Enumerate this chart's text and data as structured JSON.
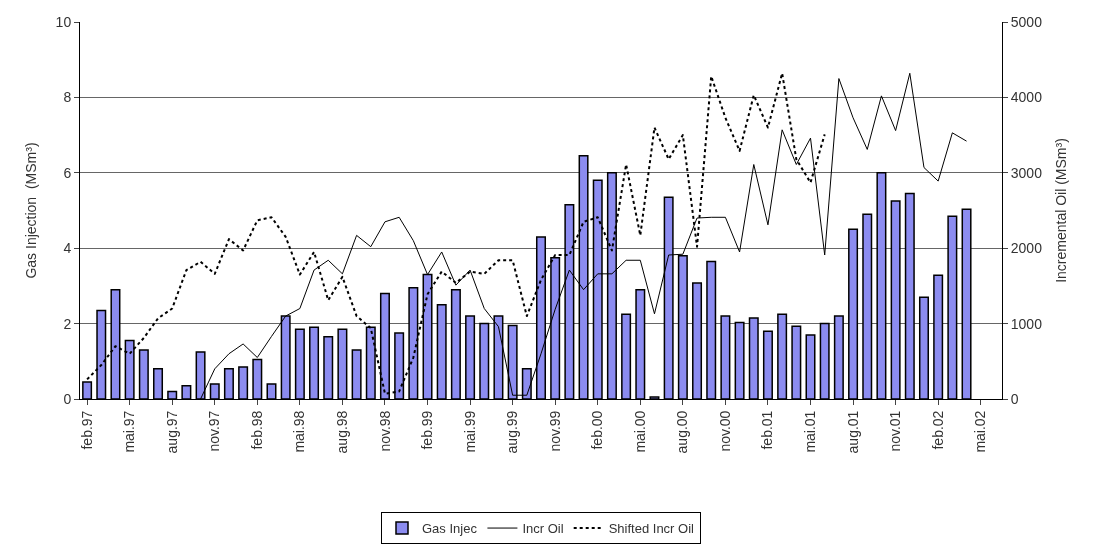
{
  "chart_data": {
    "type": "bar",
    "categories": [
      "feb.97",
      null,
      null,
      "mai.97",
      null,
      null,
      "aug.97",
      null,
      null,
      "nov.97",
      null,
      null,
      "feb.98",
      null,
      null,
      "mai.98",
      null,
      null,
      "aug.98",
      null,
      null,
      "nov.98",
      null,
      null,
      "feb.99",
      null,
      null,
      "mai.99",
      null,
      null,
      "aug.99",
      null,
      null,
      "nov.99",
      null,
      null,
      "feb.00",
      null,
      null,
      "mai.00",
      null,
      null,
      "aug.00",
      null,
      null,
      "nov.00",
      null,
      null,
      "feb.01",
      null,
      null,
      "mai.01",
      null,
      null,
      "aug.01",
      null,
      null,
      "nov.01",
      null,
      null,
      "feb.02",
      null,
      null,
      "mai.02",
      null
    ],
    "ylabel": "Gas Injection  (MSm³)",
    "y2label": "Incremental Oil (MSm³)",
    "ylim": [
      0,
      10
    ],
    "yticks": [
      0,
      2,
      4,
      6,
      8,
      10
    ],
    "y2lim": [
      0,
      5000
    ],
    "y2ticks": [
      0,
      1000,
      2000,
      3000,
      4000,
      5000
    ],
    "grid": "y",
    "legend": "bottom",
    "series": [
      {
        "name": "Gas Injec",
        "color": "#8c8cf0",
        "values": [
          0.45,
          2.35,
          2.9,
          1.55,
          1.3,
          0.8,
          0.2,
          0.35,
          1.25,
          0.4,
          0.8,
          0.85,
          1.05,
          0.4,
          2.2,
          1.85,
          1.9,
          1.65,
          1.85,
          1.3,
          1.9,
          2.8,
          1.75,
          2.95,
          3.3,
          2.5,
          2.9,
          2.2,
          2.0,
          2.2,
          1.95,
          0.8,
          4.3,
          3.75,
          5.15,
          6.45,
          5.8,
          6.0,
          2.25,
          2.9,
          0.05,
          5.35,
          3.8,
          3.08,
          3.65,
          2.2,
          2.03,
          2.15,
          1.8,
          2.25,
          1.93,
          1.7,
          2.0,
          2.2,
          4.5,
          4.9,
          6.0,
          5.25,
          5.45,
          2.7,
          3.28,
          4.85,
          5.03,
          null,
          null
        ]
      },
      {
        "name": "Incr Oil",
        "type": "line",
        "axis": "y2",
        "color": "#000000",
        "line_style": "solid",
        "values": [
          null,
          null,
          null,
          null,
          null,
          null,
          null,
          null,
          0,
          400,
          600,
          730,
          550,
          830,
          1100,
          1200,
          1710,
          1840,
          1660,
          2170,
          2020,
          2350,
          2410,
          2100,
          1650,
          1950,
          1510,
          1710,
          1200,
          960,
          50,
          50,
          600,
          1190,
          1710,
          1450,
          1660,
          1660,
          1840,
          1840,
          1130,
          1910,
          1920,
          2400,
          2410,
          2410,
          1950,
          3110,
          2310,
          3570,
          3110,
          3460,
          1910,
          4250,
          3730,
          3310,
          4020,
          3560,
          4320,
          3070,
          2890,
          3530,
          3420,
          null,
          null
        ]
      },
      {
        "name": "Shifted Incr Oil",
        "type": "line",
        "axis": "y2",
        "color": "#000000",
        "line_style": "dotted",
        "values": [
          260,
          450,
          700,
          600,
          810,
          1070,
          1200,
          1710,
          1820,
          1660,
          2120,
          1970,
          2370,
          2410,
          2150,
          1650,
          1950,
          1310,
          1620,
          1100,
          940,
          70,
          100,
          550,
          1390,
          1690,
          1540,
          1690,
          1660,
          1840,
          1840,
          1100,
          1580,
          1910,
          1910,
          2350,
          2410,
          1970,
          3110,
          2170,
          3600,
          3180,
          3500,
          2020,
          4280,
          3730,
          3290,
          4030,
          3600,
          4320,
          3180,
          2870,
          3510,
          null,
          null,
          null,
          null,
          null,
          null,
          null,
          null,
          null,
          null,
          null,
          null
        ]
      }
    ]
  }
}
